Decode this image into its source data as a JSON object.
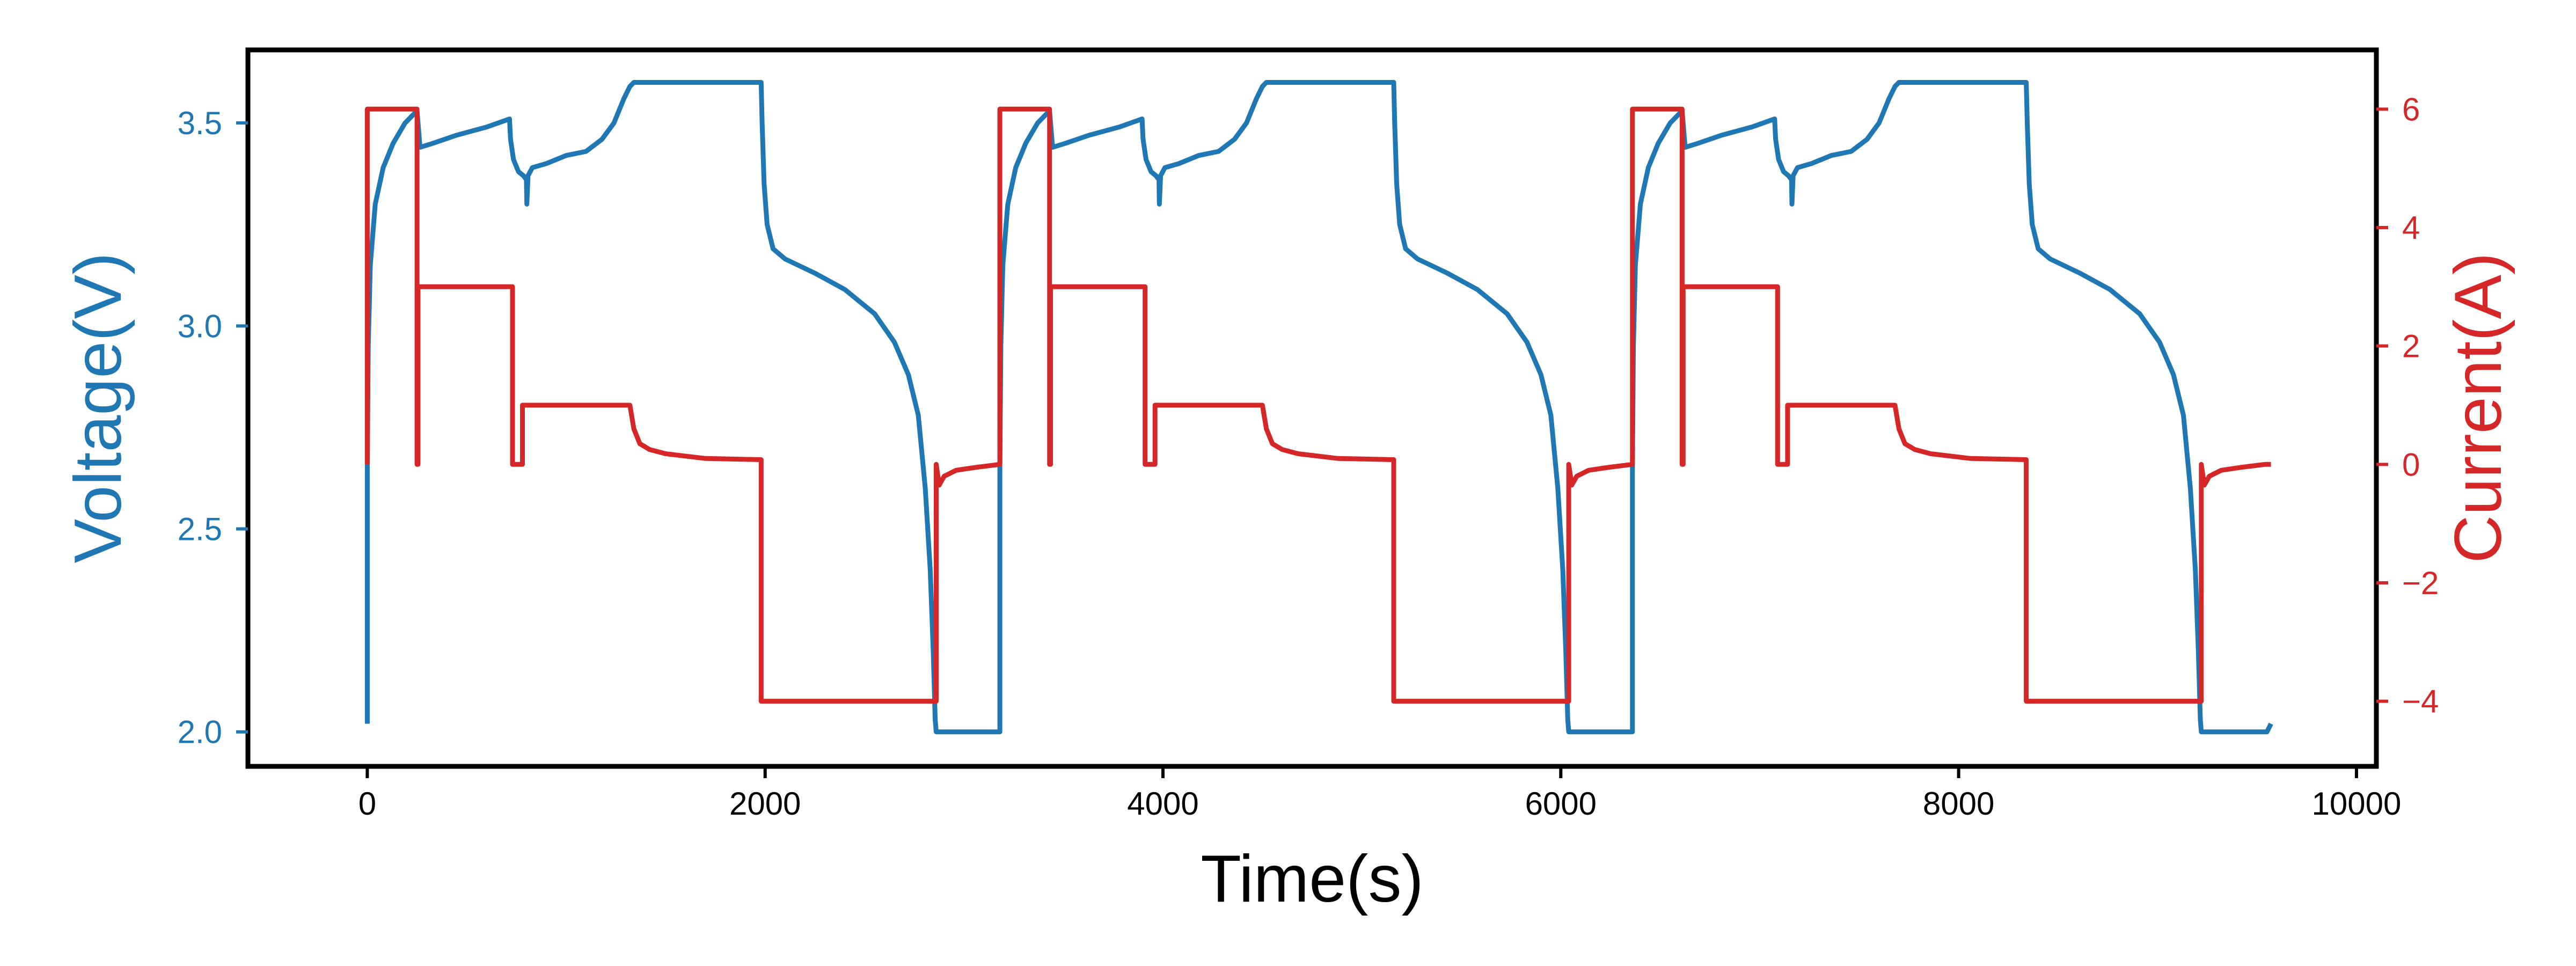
{
  "chart_data": {
    "type": "line",
    "xlabel": "Time(s)",
    "ylabel_left": "Voltage(V)",
    "ylabel_right": "Current(A)",
    "xlim": [
      -600,
      10100
    ],
    "ylim_left": [
      1.915,
      3.68
    ],
    "ylim_right": [
      -5.1,
      7.0
    ],
    "x_ticks": [
      0,
      2000,
      4000,
      6000,
      8000,
      10000
    ],
    "x_tick_labels": [
      "0",
      "2000",
      "4000",
      "6000",
      "8000",
      "10000"
    ],
    "y_left_ticks": [
      2.0,
      2.5,
      3.0,
      3.5
    ],
    "y_left_tick_labels": [
      "2.0",
      "2.5",
      "3.0",
      "3.5"
    ],
    "y_right_ticks": [
      -4,
      -2,
      0,
      2,
      4,
      6
    ],
    "y_right_tick_labels": [
      "−4",
      "−2",
      "0",
      "2",
      "4",
      "6"
    ],
    "grid": false,
    "cycle_period_s": 3180,
    "cycles": 3,
    "series": [
      {
        "axis": "left",
        "color": "#1f77b4",
        "cycle_points": [
          [
            0,
            2.02
          ],
          [
            0,
            2.65
          ],
          [
            5,
            2.95
          ],
          [
            15,
            3.15
          ],
          [
            40,
            3.3
          ],
          [
            80,
            3.39
          ],
          [
            130,
            3.45
          ],
          [
            190,
            3.5
          ],
          [
            250,
            3.53
          ],
          [
            265,
            3.44
          ],
          [
            330,
            3.45
          ],
          [
            450,
            3.47
          ],
          [
            600,
            3.49
          ],
          [
            715,
            3.51
          ],
          [
            720,
            3.46
          ],
          [
            735,
            3.41
          ],
          [
            760,
            3.38
          ],
          [
            785,
            3.37
          ],
          [
            800,
            3.36
          ],
          [
            802,
            3.3
          ],
          [
            808,
            3.37
          ],
          [
            830,
            3.39
          ],
          [
            900,
            3.4
          ],
          [
            1000,
            3.42
          ],
          [
            1100,
            3.43
          ],
          [
            1180,
            3.46
          ],
          [
            1240,
            3.5
          ],
          [
            1290,
            3.56
          ],
          [
            1320,
            3.59
          ],
          [
            1340,
            3.6
          ],
          [
            1980,
            3.6
          ],
          [
            1985,
            3.5
          ],
          [
            1995,
            3.35
          ],
          [
            2010,
            3.25
          ],
          [
            2040,
            3.19
          ],
          [
            2100,
            3.165
          ],
          [
            2250,
            3.13
          ],
          [
            2400,
            3.09
          ],
          [
            2550,
            3.03
          ],
          [
            2650,
            2.96
          ],
          [
            2720,
            2.88
          ],
          [
            2770,
            2.78
          ],
          [
            2805,
            2.6
          ],
          [
            2830,
            2.4
          ],
          [
            2845,
            2.2
          ],
          [
            2855,
            2.03
          ],
          [
            2860,
            2.0
          ],
          [
            3180,
            2.0
          ]
        ]
      },
      {
        "axis": "right",
        "color": "#d62728",
        "cycle_points": [
          [
            0,
            0
          ],
          [
            0,
            6
          ],
          [
            250,
            6
          ],
          [
            250,
            0
          ],
          [
            255,
            0
          ],
          [
            255,
            3
          ],
          [
            730,
            3
          ],
          [
            730,
            0
          ],
          [
            780,
            0
          ],
          [
            780,
            1
          ],
          [
            1320,
            1
          ],
          [
            1340,
            0.6
          ],
          [
            1370,
            0.35
          ],
          [
            1420,
            0.25
          ],
          [
            1500,
            0.18
          ],
          [
            1700,
            0.1
          ],
          [
            1980,
            0.08
          ],
          [
            1980,
            -4
          ],
          [
            2860,
            -4
          ],
          [
            2860,
            0
          ],
          [
            2875,
            -0.35
          ],
          [
            2900,
            -0.2
          ],
          [
            2960,
            -0.1
          ],
          [
            3060,
            -0.05
          ],
          [
            3180,
            0
          ]
        ]
      }
    ]
  }
}
